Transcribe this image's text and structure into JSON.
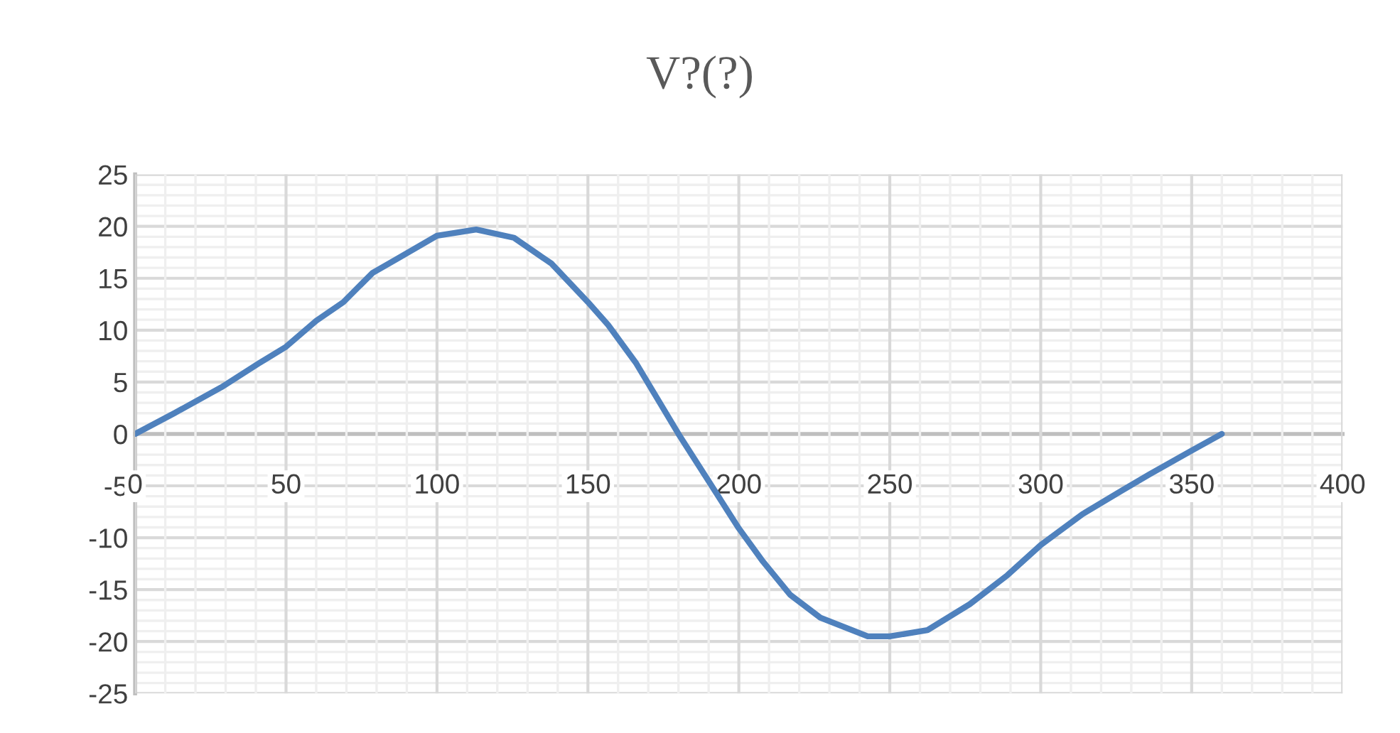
{
  "chart_data": {
    "type": "line",
    "title": "V?(?)",
    "x": [
      0,
      13,
      28.6,
      41,
      50,
      60,
      69,
      78.6,
      86.4,
      100,
      113,
      125.5,
      138,
      150,
      156.7,
      166,
      180,
      189,
      200,
      208,
      217,
      227,
      242.7,
      250,
      262.5,
      276.5,
      289,
      300,
      314,
      326.6,
      336,
      350,
      360
    ],
    "series": [
      {
        "color": "#4f81bd",
        "values": [
          0,
          2.0,
          4.5,
          6.8,
          8.4,
          10.9,
          12.7,
          15.5,
          16.8,
          19.1,
          19.7,
          18.9,
          16.4,
          12.7,
          10.5,
          6.8,
          0,
          -4.1,
          -9.1,
          -12.3,
          -15.5,
          -17.7,
          -19.5,
          -19.5,
          -18.9,
          -16.4,
          -13.6,
          -10.7,
          -7.7,
          -5.5,
          -3.9,
          -1.6,
          0
        ]
      }
    ],
    "xlim": [
      0,
      400
    ],
    "xticks": [
      0,
      50,
      100,
      150,
      200,
      250,
      300,
      350,
      400
    ],
    "ylim": [
      -25,
      25
    ],
    "yticks": [
      -25,
      -20,
      -15,
      -10,
      -5,
      0,
      5,
      10,
      15,
      20,
      25
    ],
    "grid": true,
    "marker": "none",
    "line_style": "solid",
    "legend": false
  }
}
